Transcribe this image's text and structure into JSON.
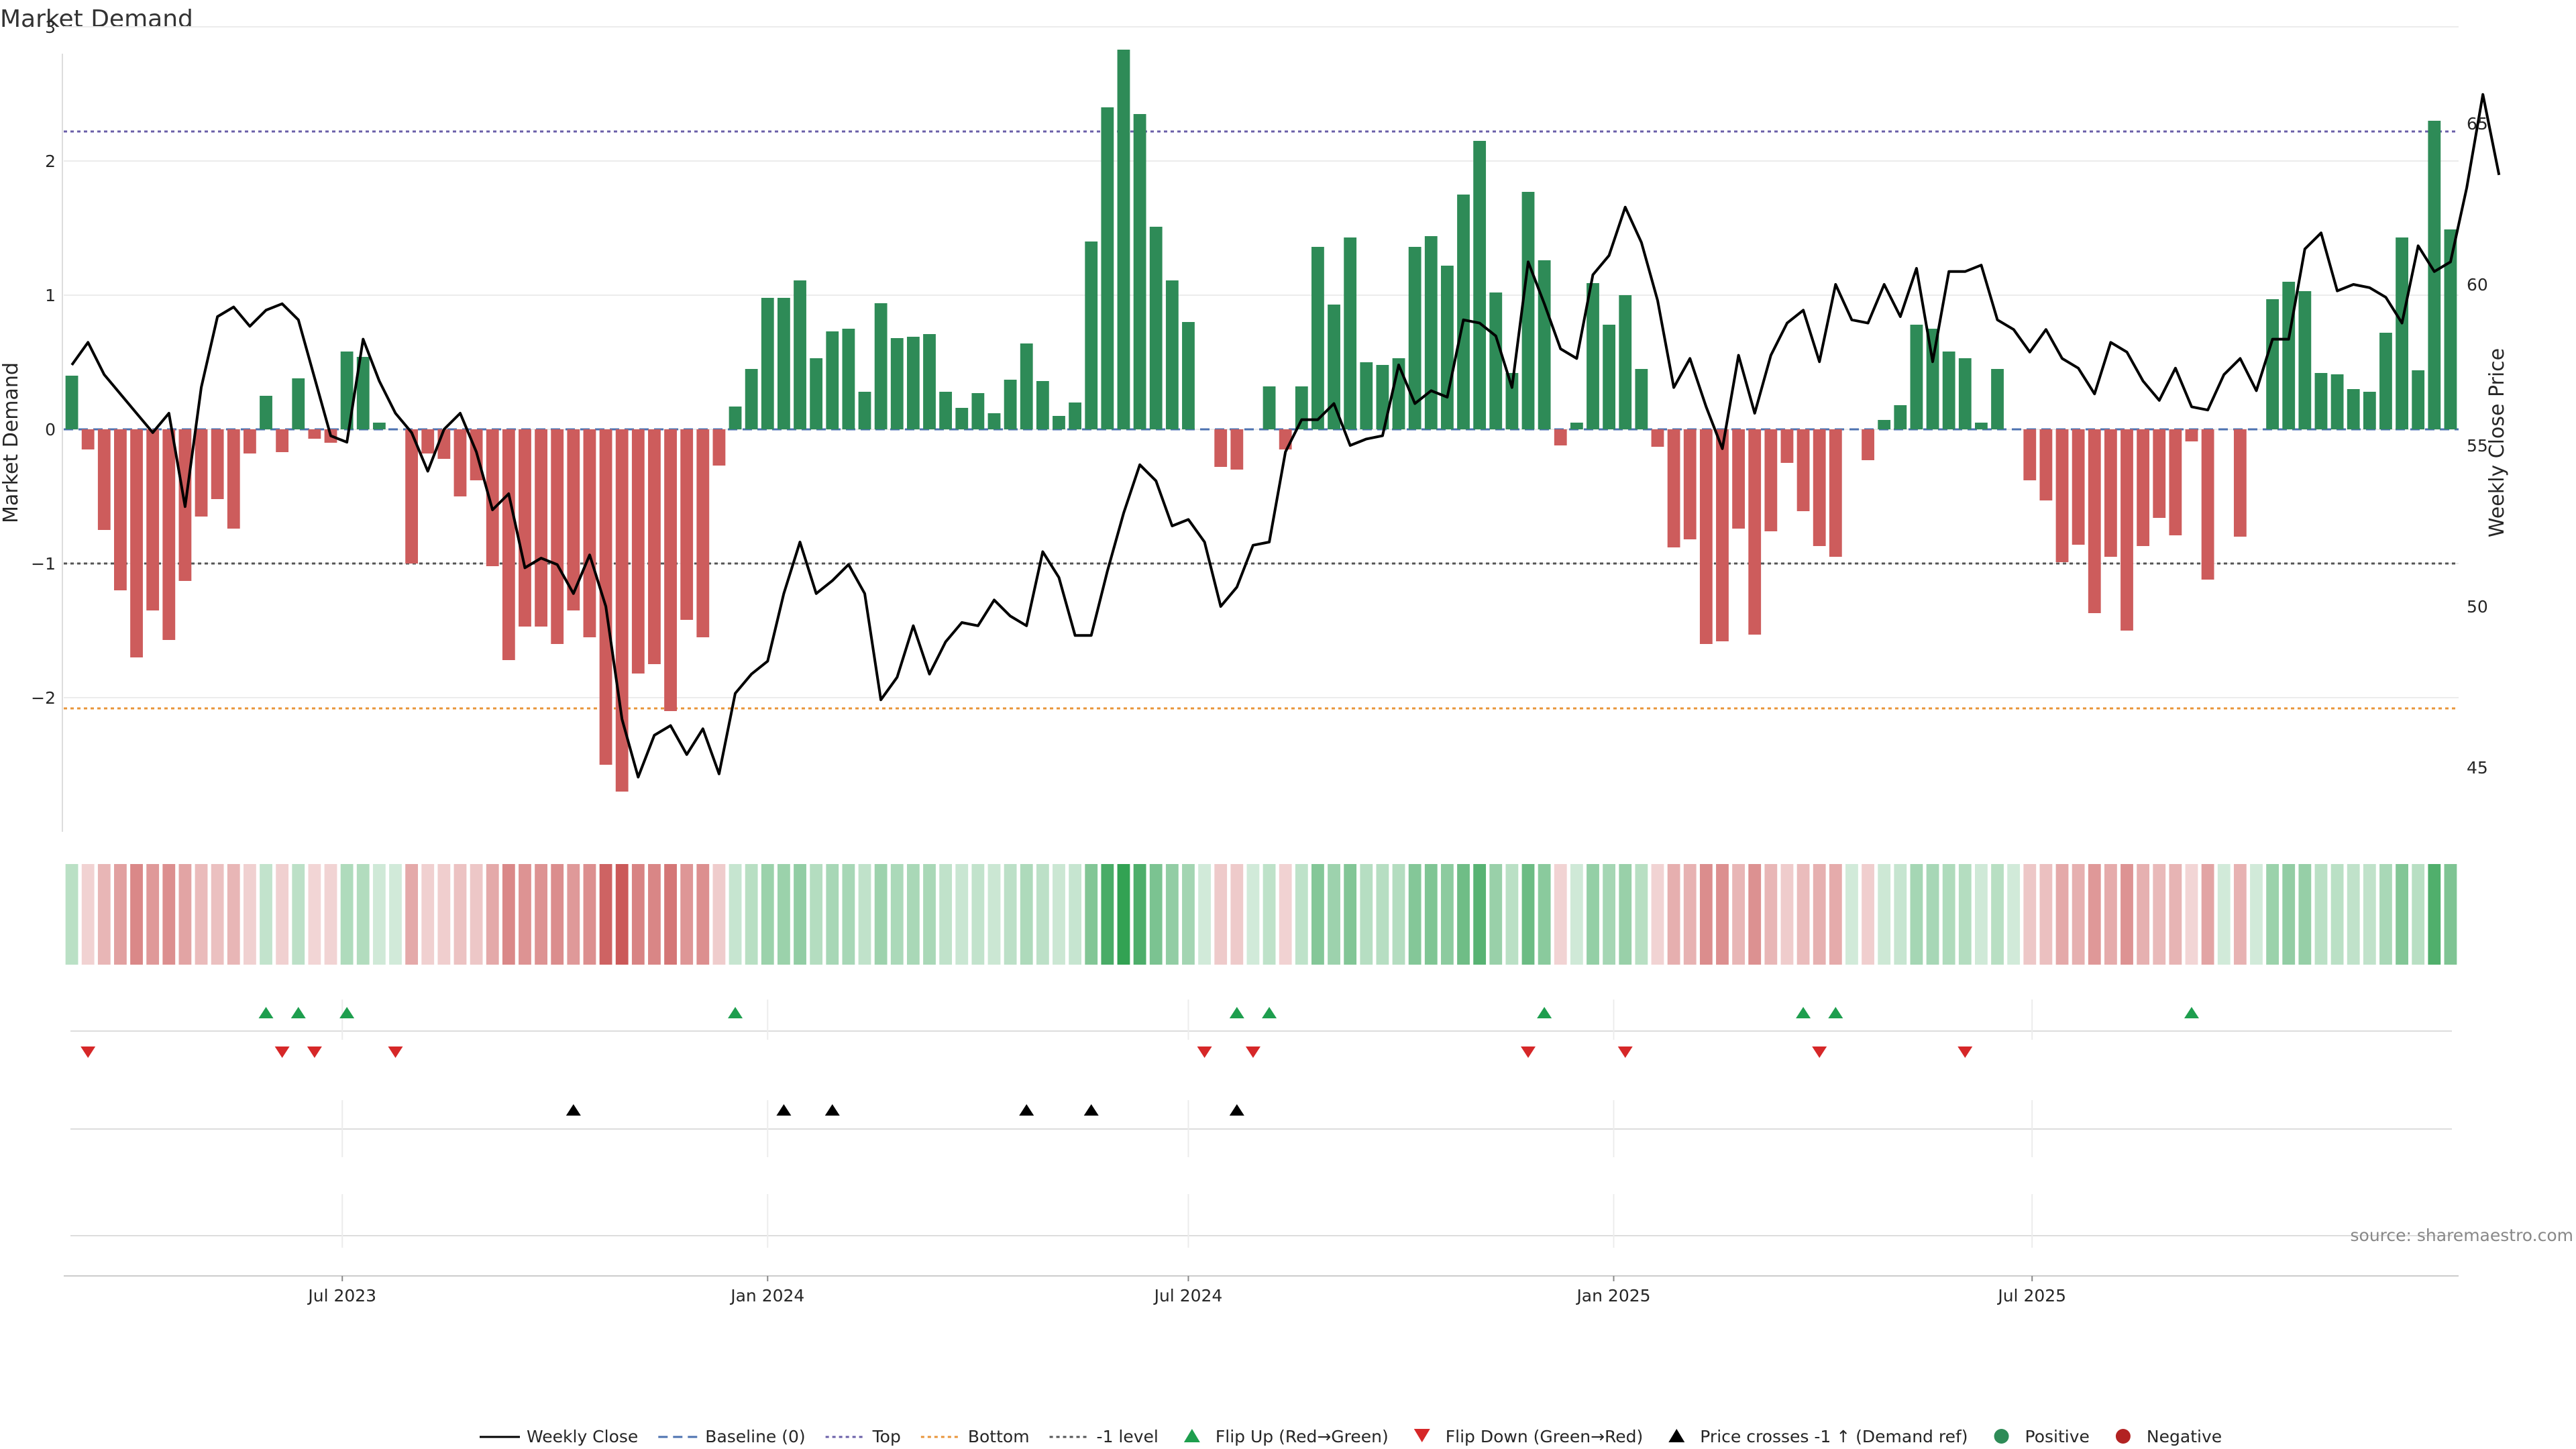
{
  "chart_data": {
    "type": "bar",
    "title": "Market Demand",
    "ylabel": "Market Demand",
    "y2label": "Weekly Close Price",
    "ylim": [
      -3.0,
      3.0
    ],
    "y2lim": [
      43.0,
      68.0
    ],
    "yticks": [
      3,
      2,
      1,
      0,
      -1,
      -2
    ],
    "ytick_labels": [
      "3",
      "2",
      "1",
      "0",
      "−1",
      "−2"
    ],
    "y2ticks": [
      65,
      60,
      55,
      50,
      45
    ],
    "y2tick_labels": [
      "65",
      "60",
      "55",
      "50",
      "45"
    ],
    "levels": {
      "top": 2.22,
      "bottom": -2.08,
      "minus_one": -1.0
    },
    "start_date": "2023-03-06",
    "x_tick_labels": [
      {
        "label": "Jul 2023",
        "date": "2023-07-01"
      },
      {
        "label": "Jan 2024",
        "date": "2024-01-01"
      },
      {
        "label": "Jul 2024",
        "date": "2024-07-01"
      },
      {
        "label": "Jan 2025",
        "date": "2025-01-01"
      },
      {
        "label": "Jul 2025",
        "date": "2025-07-01"
      }
    ],
    "demand": [
      0.4,
      -0.15,
      -0.75,
      -1.2,
      -1.7,
      -1.35,
      -1.57,
      -1.13,
      -0.65,
      -0.52,
      -0.74,
      -0.18,
      0.25,
      -0.17,
      0.38,
      -0.07,
      -0.1,
      0.58,
      0.54,
      0.05,
      0.0,
      -1.0,
      -0.18,
      -0.22,
      -0.5,
      -0.38,
      -1.02,
      -1.72,
      -1.47,
      -1.47,
      -1.6,
      -1.35,
      -1.55,
      -2.5,
      -2.7,
      -1.82,
      -1.75,
      -2.1,
      -1.42,
      -1.55,
      -0.27,
      0.17,
      0.45,
      0.98,
      0.98,
      1.11,
      0.53,
      0.73,
      0.75,
      0.28,
      0.94,
      0.68,
      0.69,
      0.71,
      0.28,
      0.16,
      0.27,
      0.12,
      0.37,
      0.64,
      0.36,
      0.1,
      0.2,
      1.4,
      2.4,
      2.83,
      2.35,
      1.51,
      1.11,
      0.8,
      0.0,
      -0.28,
      -0.3,
      0.0,
      0.32,
      -0.15,
      0.32,
      1.36,
      0.93,
      1.43,
      0.5,
      0.48,
      0.53,
      1.36,
      1.44,
      1.22,
      1.75,
      2.15,
      1.02,
      0.42,
      1.77,
      1.26,
      -0.12,
      0.05,
      1.09,
      0.78,
      1.0,
      0.45,
      -0.13,
      -0.88,
      -0.82,
      -1.6,
      -1.58,
      -0.74,
      -1.53,
      -0.76,
      -0.25,
      -0.61,
      -0.87,
      -0.95,
      0.0,
      -0.23,
      0.07,
      0.18,
      0.78,
      0.75,
      0.58,
      0.53,
      0.05,
      0.45,
      0.0,
      -0.38,
      -0.53,
      -0.99,
      -0.86,
      -1.37,
      -0.95,
      -1.5,
      -0.87,
      -0.66,
      -0.79,
      -0.09,
      -1.12,
      0.0,
      -0.8,
      0.0,
      0.97,
      1.1,
      1.03,
      0.42,
      0.41,
      0.3,
      0.28,
      0.72,
      1.43,
      0.44,
      2.3,
      1.49
    ],
    "close": [
      57.5,
      58.2,
      57.2,
      56.6,
      56.0,
      55.4,
      56.0,
      53.1,
      56.8,
      59.0,
      59.3,
      58.7,
      59.2,
      59.4,
      58.9,
      57.1,
      55.3,
      55.1,
      58.3,
      57.0,
      56.0,
      55.4,
      54.2,
      55.5,
      56.0,
      54.8,
      53.0,
      53.5,
      51.2,
      51.5,
      51.3,
      50.4,
      51.6,
      50.0,
      46.5,
      44.7,
      46.0,
      46.3,
      45.4,
      46.2,
      44.8,
      47.3,
      47.9,
      48.3,
      50.4,
      52.0,
      50.4,
      50.8,
      51.3,
      50.4,
      47.1,
      47.8,
      49.4,
      47.9,
      48.9,
      49.5,
      49.4,
      50.2,
      49.7,
      49.4,
      51.7,
      50.9,
      49.1,
      49.1,
      51.1,
      52.9,
      54.4,
      53.9,
      52.5,
      52.7,
      52.0,
      50.0,
      50.6,
      51.9,
      52.0,
      54.8,
      55.8,
      55.8,
      56.3,
      55.0,
      55.2,
      55.3,
      57.5,
      56.3,
      56.7,
      56.5,
      58.9,
      58.8,
      58.4,
      56.8,
      60.7,
      59.4,
      58.0,
      57.7,
      60.3,
      60.9,
      62.4,
      61.3,
      59.5,
      56.8,
      57.7,
      56.2,
      54.9,
      57.8,
      56.0,
      57.8,
      58.8,
      59.2,
      57.6,
      60.0,
      58.9,
      58.8,
      60.0,
      59.0,
      60.5,
      57.6,
      60.4,
      60.4,
      60.6,
      58.9,
      58.6,
      57.9,
      58.6,
      57.7,
      57.4,
      56.6,
      58.2,
      57.9,
      57.0,
      56.4,
      57.4,
      56.2,
      56.1,
      57.2,
      57.7,
      56.7,
      58.3,
      58.3,
      61.1,
      61.6,
      59.8,
      60.0,
      59.9,
      59.6,
      58.8,
      61.2,
      60.4,
      60.7,
      63.0,
      65.9,
      63.4
    ],
    "flip_up": [
      12,
      14,
      17,
      41,
      72,
      74,
      91,
      107,
      109,
      131
    ],
    "flip_down": [
      1,
      13,
      15,
      20,
      70,
      73,
      90,
      96,
      108,
      117
    ],
    "cross_up": [
      31,
      44,
      47,
      59,
      63,
      72
    ]
  },
  "legend": [
    {
      "label": "Weekly Close",
      "kind": "line-solid",
      "color": "#000000"
    },
    {
      "label": "Baseline (0)",
      "kind": "line-dash",
      "color": "#4c72b0"
    },
    {
      "label": "Top",
      "kind": "line-dot",
      "color": "#6a5fa8"
    },
    {
      "label": "Bottom",
      "kind": "line-dot",
      "color": "#e8953a"
    },
    {
      "label": "-1 level",
      "kind": "line-dot",
      "color": "#555555"
    },
    {
      "label": "Flip Up (Red→Green)",
      "kind": "triangle-up",
      "color": "#1e9e4e"
    },
    {
      "label": "Flip Down (Green→Red)",
      "kind": "triangle-down",
      "color": "#d62728"
    },
    {
      "label": "Price crosses -1 ↑ (Demand ref)",
      "kind": "triangle-up",
      "color": "#000000"
    },
    {
      "label": "Positive",
      "kind": "dot",
      "color": "#2e8b57"
    },
    {
      "label": "Negative",
      "kind": "dot",
      "color": "#b22222"
    }
  ],
  "source": "source: sharemaestro.com",
  "colors": {
    "positive_bar": "#2e8b57",
    "negative_bar": "#cd5c5c",
    "close_line": "#000000",
    "top_line": "#6a5fa8",
    "bottom_line": "#e8953a",
    "minus_one_line": "#555555",
    "baseline": "#4c72b0",
    "grid": "#ececec"
  }
}
